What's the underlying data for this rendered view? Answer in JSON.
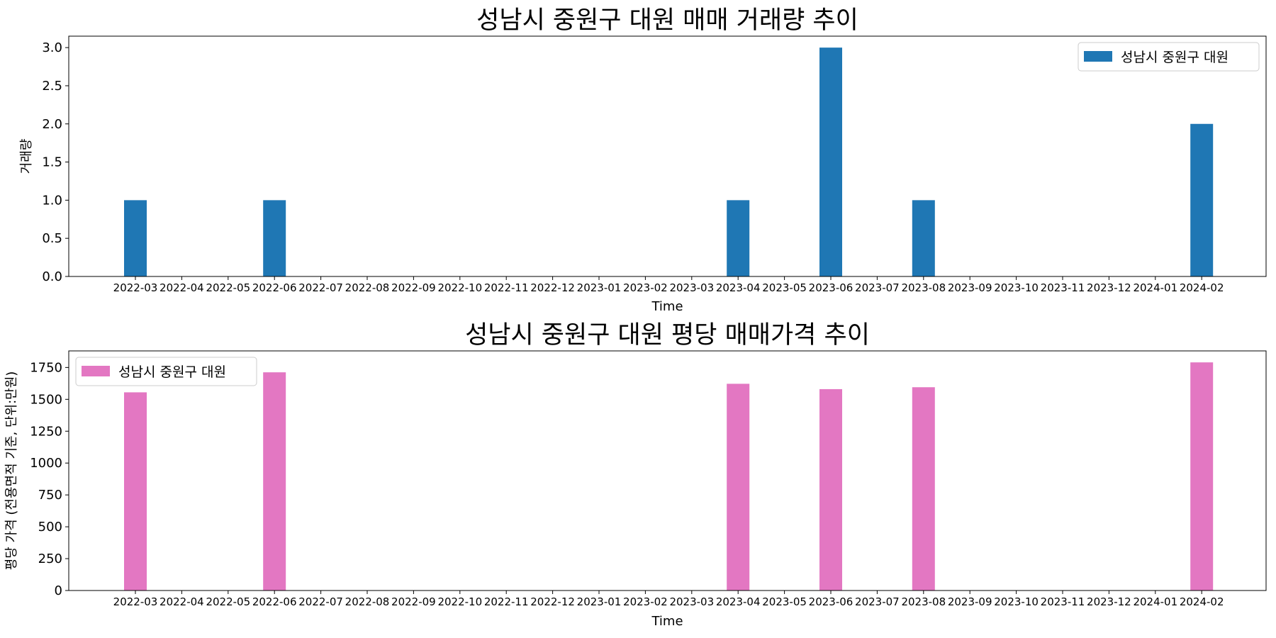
{
  "chart_data": [
    {
      "type": "bar",
      "title": "성남시 중원구 대원 매매 거래량 추이",
      "xlabel": "Time",
      "ylabel": "거래량",
      "categories": [
        "2022-03",
        "2022-04",
        "2022-05",
        "2022-06",
        "2022-07",
        "2022-08",
        "2022-09",
        "2022-10",
        "2022-11",
        "2022-12",
        "2023-01",
        "2023-02",
        "2023-03",
        "2023-04",
        "2023-05",
        "2023-06",
        "2023-07",
        "2023-08",
        "2023-09",
        "2023-10",
        "2023-11",
        "2023-12",
        "2024-01",
        "2024-02"
      ],
      "series": [
        {
          "name": "성남시 중원구 대원",
          "color": "#1f77b4",
          "values": [
            1,
            0,
            0,
            1,
            0,
            0,
            0,
            0,
            0,
            0,
            0,
            0,
            0,
            1,
            0,
            3,
            0,
            1,
            0,
            0,
            0,
            0,
            0,
            2
          ]
        }
      ],
      "ylim": [
        0,
        3.15
      ],
      "yticks": [
        "0.0",
        "0.5",
        "1.0",
        "1.5",
        "2.0",
        "2.5",
        "3.0"
      ],
      "legend_position": "top-right",
      "grid": false
    },
    {
      "type": "bar",
      "title": "성남시 중원구 대원 평당 매매가격 추이",
      "xlabel": "Time",
      "ylabel": "평당 가격 (전용면적 기준, 단위:만원)",
      "categories": [
        "2022-03",
        "2022-04",
        "2022-05",
        "2022-06",
        "2022-07",
        "2022-08",
        "2022-09",
        "2022-10",
        "2022-11",
        "2022-12",
        "2023-01",
        "2023-02",
        "2023-03",
        "2023-04",
        "2023-05",
        "2023-06",
        "2023-07",
        "2023-08",
        "2023-09",
        "2023-10",
        "2023-11",
        "2023-12",
        "2024-01",
        "2024-02"
      ],
      "series": [
        {
          "name": "성남시 중원구 대원",
          "color": "#e377c2",
          "values": [
            1555,
            0,
            0,
            1712,
            0,
            0,
            0,
            0,
            0,
            0,
            0,
            0,
            0,
            1622,
            0,
            1580,
            0,
            1595,
            0,
            0,
            0,
            0,
            0,
            1790
          ]
        }
      ],
      "ylim": [
        0,
        1880
      ],
      "yticks": [
        "0",
        "250",
        "500",
        "750",
        "1000",
        "1250",
        "1500",
        "1750"
      ],
      "legend_position": "top-left",
      "grid": false
    }
  ]
}
